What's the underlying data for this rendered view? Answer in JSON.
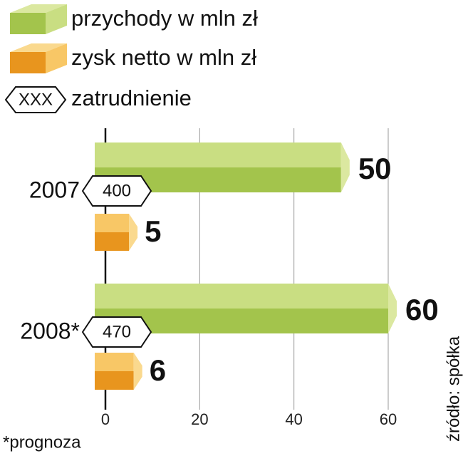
{
  "chart_data": {
    "type": "bar3d_horizontal",
    "categories": [
      "2007",
      "2008*"
    ],
    "series": [
      {
        "name": "przychody w mln zł",
        "color": "#a9c852",
        "values": [
          50,
          60
        ]
      },
      {
        "name": "zysk netto w mln zł",
        "color": "#eda12c",
        "values": [
          5,
          6
        ]
      }
    ],
    "employment": {
      "name": "zatrudnienie",
      "symbol": "XXX",
      "values": [
        400,
        470
      ]
    },
    "xlim": [
      0,
      60
    ],
    "xticks": [
      0,
      20,
      40,
      60
    ],
    "grid": true,
    "footnote": "*prognoza",
    "source": "źródło: spółka"
  }
}
